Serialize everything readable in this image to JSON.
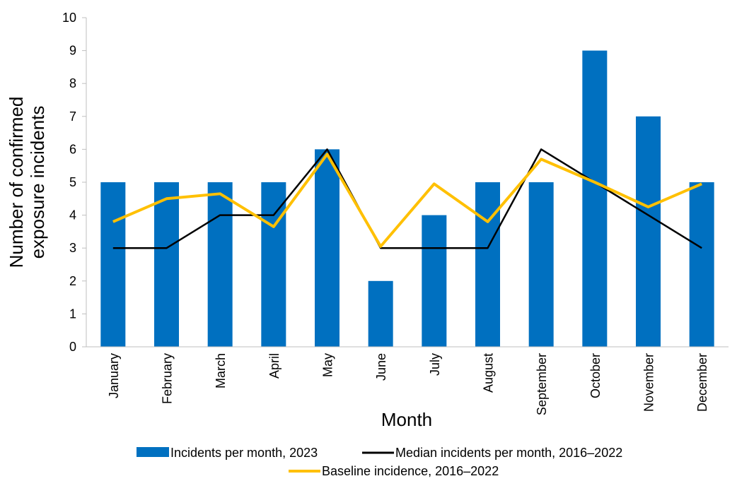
{
  "chart_data": {
    "type": "bar",
    "categories": [
      "January",
      "February",
      "March",
      "April",
      "May",
      "June",
      "July",
      "August",
      "September",
      "October",
      "November",
      "December"
    ],
    "series": [
      {
        "name": "Incidents per month, 2023",
        "kind": "bar",
        "color": "#0070C0",
        "values": [
          5,
          5,
          5,
          5,
          6,
          2,
          4,
          5,
          5,
          9,
          7,
          5
        ]
      },
      {
        "name": "Median incidents per month, 2016–2022",
        "kind": "line",
        "color": "#000000",
        "values": [
          3,
          3,
          4,
          4,
          6,
          3,
          3,
          3,
          6,
          5,
          4,
          3
        ]
      },
      {
        "name": "Baseline incidence, 2016–2022",
        "kind": "line",
        "color": "#FFC000",
        "values": [
          3.8,
          4.5,
          4.65,
          3.65,
          5.85,
          3.05,
          4.95,
          3.8,
          5.7,
          5.0,
          4.25,
          4.95
        ]
      }
    ],
    "xlabel": "Month",
    "ylabel_lines": [
      "Number of confirmed",
      "exposure incidents"
    ],
    "ylim": [
      0,
      10
    ],
    "yticks": [
      0,
      1,
      2,
      3,
      4,
      5,
      6,
      7,
      8,
      9,
      10
    ],
    "grid": false,
    "legend_position": "bottom"
  }
}
